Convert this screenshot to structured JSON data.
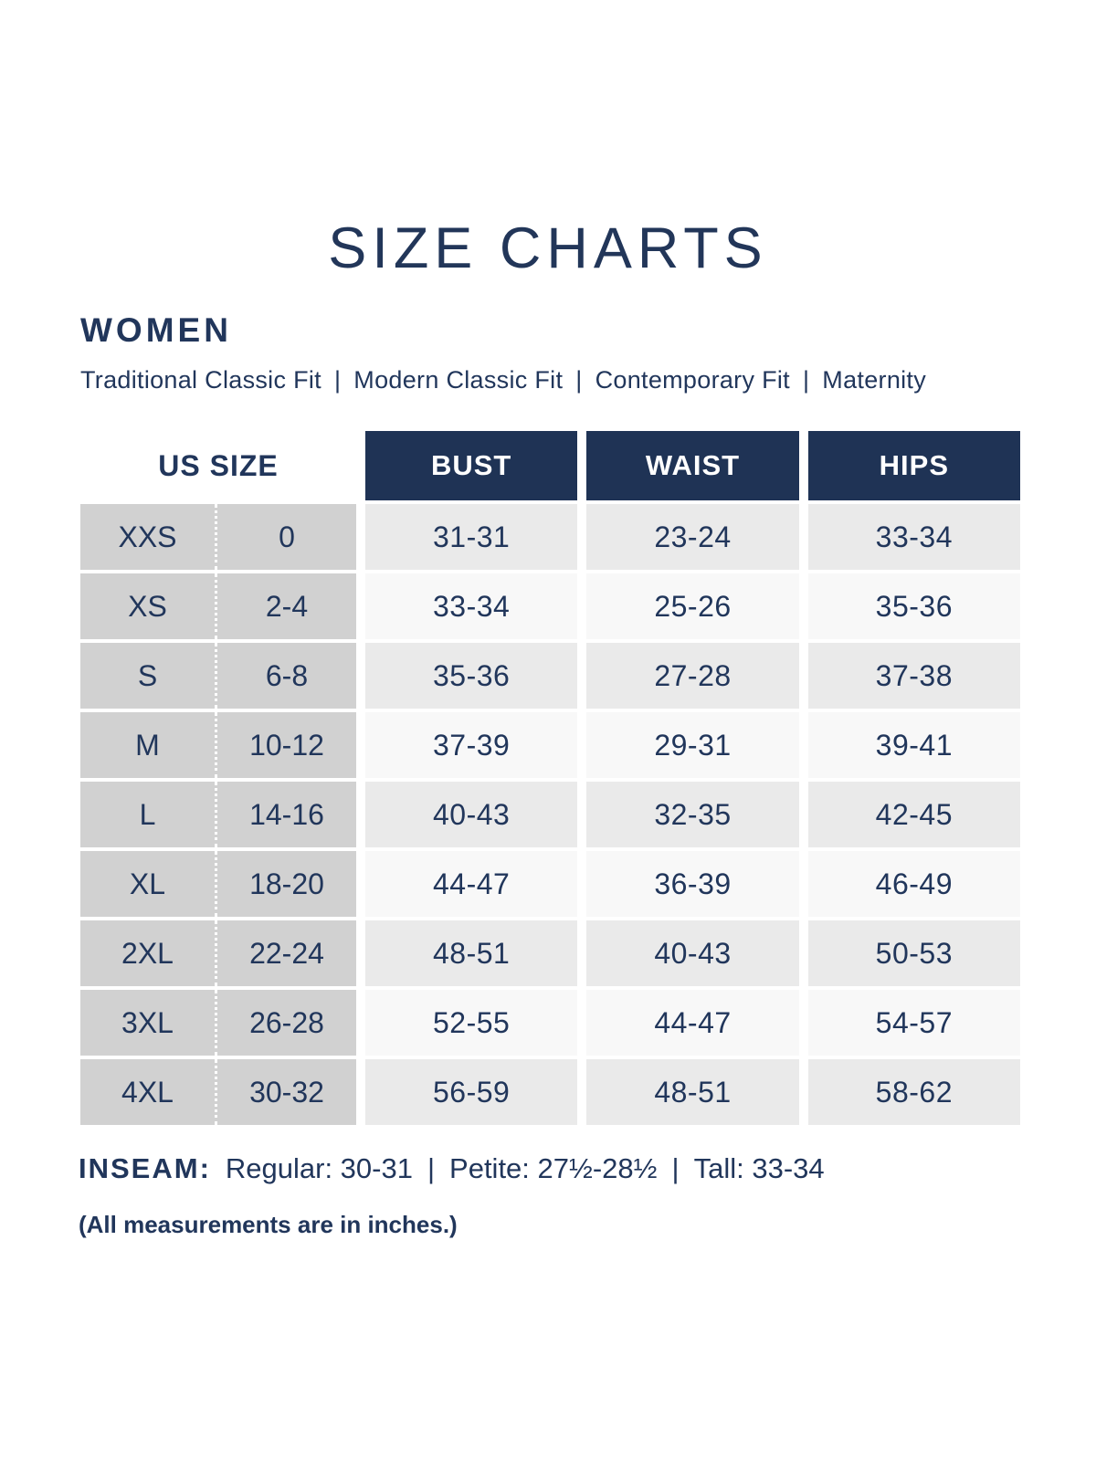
{
  "page": {
    "title": "SIZE CHARTS",
    "section": "WOMEN",
    "fit_separator": "|",
    "fits": [
      "Traditional Classic Fit",
      "Modern Classic Fit",
      "Contemporary Fit",
      "Maternity"
    ]
  },
  "colors": {
    "navy": "#1f3355",
    "header_text": "#ffffff",
    "left_column_gray": "#d1d1d1",
    "row_shaded": "#eaeaea",
    "row_plain": "#f8f8f8",
    "text_navy": "#21365b"
  },
  "table": {
    "headers": {
      "us_size": "US SIZE",
      "bust": "BUST",
      "waist": "WAIST",
      "hips": "HIPS"
    },
    "rows": [
      {
        "size": "XXS",
        "us": "0",
        "bust": "31-31",
        "waist": "23-24",
        "hips": "33-34"
      },
      {
        "size": "XS",
        "us": "2-4",
        "bust": "33-34",
        "waist": "25-26",
        "hips": "35-36"
      },
      {
        "size": "S",
        "us": "6-8",
        "bust": "35-36",
        "waist": "27-28",
        "hips": "37-38"
      },
      {
        "size": "M",
        "us": "10-12",
        "bust": "37-39",
        "waist": "29-31",
        "hips": "39-41"
      },
      {
        "size": "L",
        "us": "14-16",
        "bust": "40-43",
        "waist": "32-35",
        "hips": "42-45"
      },
      {
        "size": "XL",
        "us": "18-20",
        "bust": "44-47",
        "waist": "36-39",
        "hips": "46-49"
      },
      {
        "size": "2XL",
        "us": "22-24",
        "bust": "48-51",
        "waist": "40-43",
        "hips": "50-53"
      },
      {
        "size": "3XL",
        "us": "26-28",
        "bust": "52-55",
        "waist": "44-47",
        "hips": "54-57"
      },
      {
        "size": "4XL",
        "us": "30-32",
        "bust": "56-59",
        "waist": "48-51",
        "hips": "58-62"
      }
    ]
  },
  "inseam": {
    "label": "INSEAM:",
    "separator": "|",
    "parts": [
      "Regular: 30-31",
      "Petite: 27½-28½",
      "Tall: 33-34"
    ]
  },
  "note": "(All measurements are in inches.)"
}
